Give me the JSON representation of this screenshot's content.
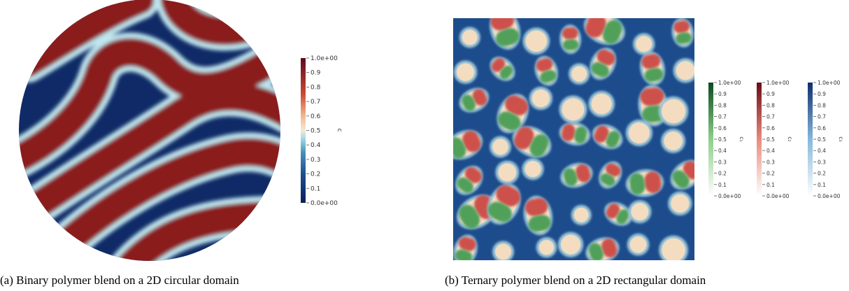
{
  "panels": [
    {
      "caption": "(a) Binary polymer blend on a 2D circular domain",
      "colorbars": [
        {
          "label": "c",
          "ticks": [
            "1.0e+00",
            "0.9",
            "0.8",
            "0.7",
            "0.6",
            "0.5",
            "0.4",
            "0.3",
            "0.2",
            "0.1",
            "0.0e+00"
          ]
        }
      ]
    },
    {
      "caption": "(b) Ternary polymer blend on a 2D rectangular domain",
      "colorbars": [
        {
          "label": "c₁",
          "ticks": [
            "1.0e+00",
            "0.9",
            "0.8",
            "0.7",
            "0.6",
            "0.5",
            "0.4",
            "0.3",
            "0.2",
            "0.1",
            "0.0e+00"
          ]
        },
        {
          "label": "c₂",
          "ticks": [
            "1.0e+00",
            "0.9",
            "0.8",
            "0.7",
            "0.6",
            "0.5",
            "0.4",
            "0.3",
            "0.2",
            "0.1",
            "0.0e+00"
          ]
        },
        {
          "label": "c₃",
          "ticks": [
            "1.0e+00",
            "0.9",
            "0.8",
            "0.7",
            "0.6",
            "0.5",
            "0.4",
            "0.3",
            "0.2",
            "0.1",
            "0.0e+00"
          ]
        }
      ]
    }
  ]
}
